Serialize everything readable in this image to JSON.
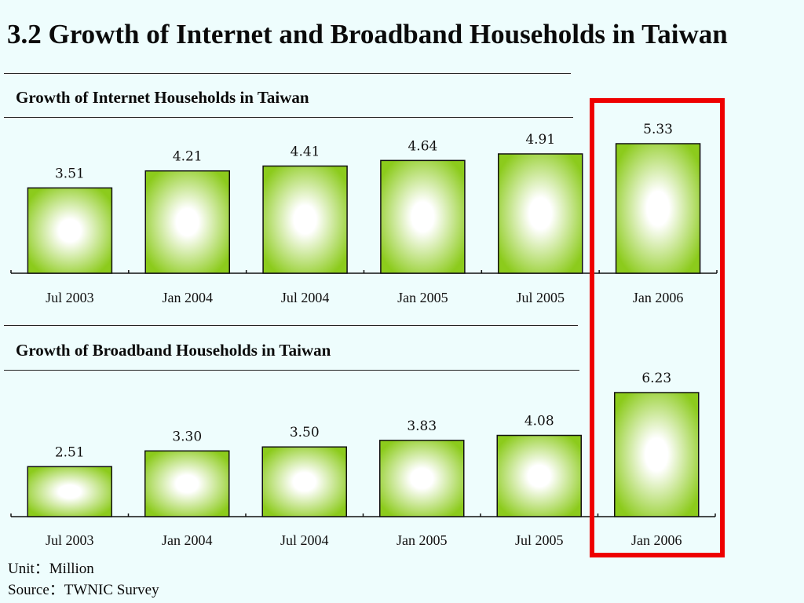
{
  "slide": {
    "title": "3.2 Growth of Internet and Broadband Households in Taiwan",
    "unit": "Unit：Million",
    "source": "Source：TWNIC Survey",
    "highlight_color": "#ee0000"
  },
  "chart_data": [
    {
      "type": "bar",
      "title": "Growth of Internet Households in Taiwan",
      "categories": [
        "Jul 2003",
        "Jan 2004",
        "Jul 2004",
        "Jan 2005",
        "Jul 2005",
        "Jan 2006"
      ],
      "values": [
        3.51,
        4.21,
        4.41,
        4.64,
        4.91,
        5.33
      ],
      "value_labels": [
        "3.51",
        "4.21",
        "4.41",
        "4.64",
        "4.91",
        "5.33"
      ],
      "bar_color": "#8ccb1c",
      "bar_center_color": "#ffffff",
      "ylim": [
        0,
        5.33
      ],
      "grid": false,
      "highlighted_category": "Jan 2006"
    },
    {
      "type": "bar",
      "title": "Growth of Broadband Households in Taiwan",
      "categories": [
        "Jul 2003",
        "Jan 2004",
        "Jul 2004",
        "Jan 2005",
        "Jul 2005",
        "Jan 2006"
      ],
      "values": [
        2.51,
        3.3,
        3.5,
        3.83,
        4.08,
        6.23
      ],
      "value_labels": [
        "2.51",
        "3.30",
        "3.50",
        "3.83",
        "4.08",
        "6.23"
      ],
      "bar_color": "#8ccb1c",
      "bar_center_color": "#ffffff",
      "ylim": [
        0,
        6.23
      ],
      "grid": false,
      "highlighted_category": "Jan 2006"
    }
  ]
}
